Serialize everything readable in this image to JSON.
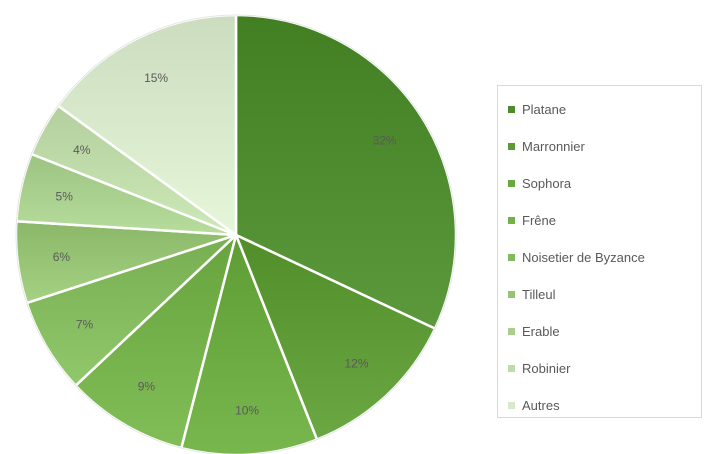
{
  "chart_data": {
    "type": "pie",
    "title": "",
    "legend_placement": "right",
    "categories": [
      "Platane",
      "Marronnier",
      "Sophora",
      "Frêne",
      "Noisetier de Byzance",
      "Tilleul",
      "Erable",
      "Robinier",
      "Autres"
    ],
    "values": [
      32,
      12,
      10,
      9,
      7,
      6,
      5,
      4,
      15
    ],
    "labels": [
      "32%",
      "12%",
      "10%",
      "9%",
      "7%",
      "6%",
      "5%",
      "4%",
      "15%"
    ],
    "colors": [
      "#4e8a2e",
      "#5d9a36",
      "#6aa840",
      "#74b04a",
      "#84ba5e",
      "#96c474",
      "#a9cf8e",
      "#bfdba9",
      "#d8e8cb"
    ]
  }
}
